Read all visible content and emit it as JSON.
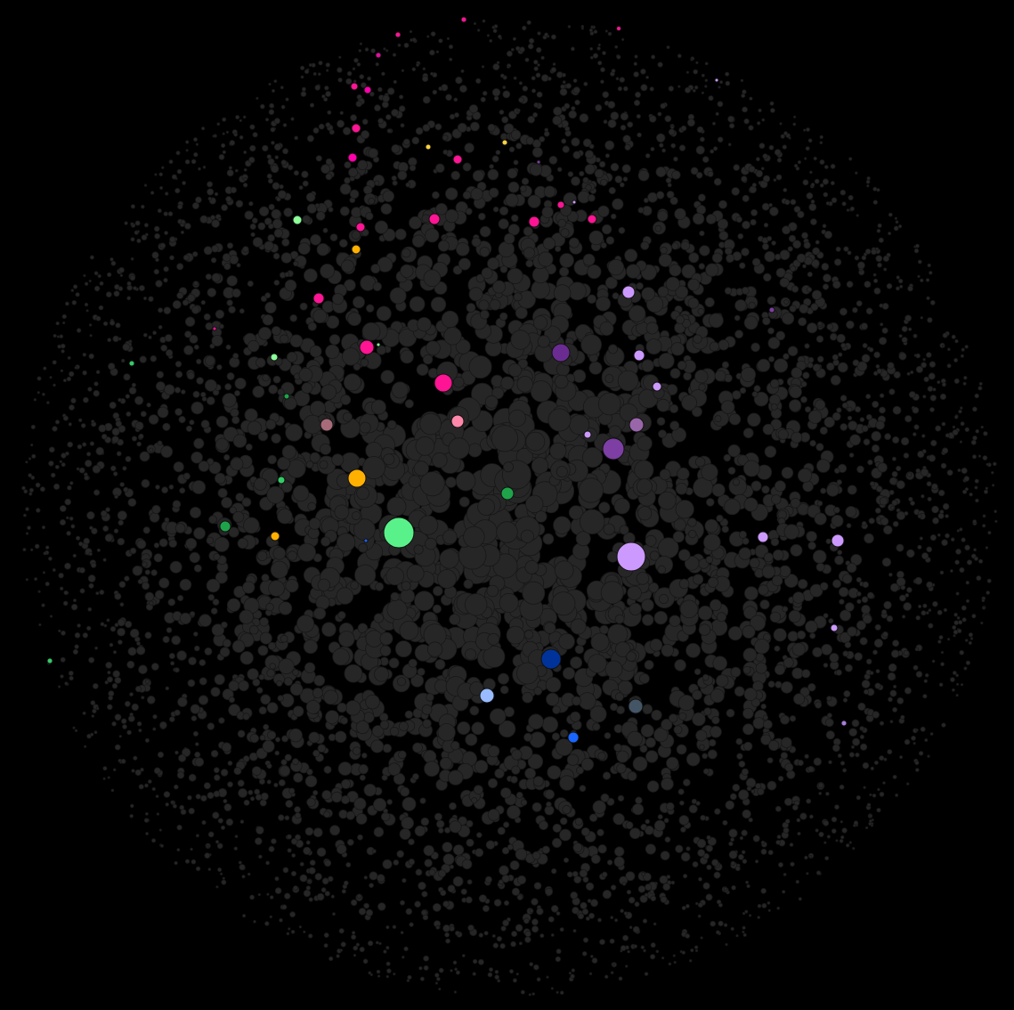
{
  "colors": {
    "background": "#000000",
    "default_fill": "#262626",
    "default_stroke": "#171717"
  },
  "highlighted_node_colors": [
    "#ff1493",
    "#ff00aa",
    "#e0119d",
    "#ff33cc",
    "#ffd23f",
    "#ffb000",
    "#59f28a",
    "#33cc66",
    "#1fa34a",
    "#8cff99",
    "#cc99ff",
    "#a97ee0",
    "#7d3fa3",
    "#6a2c91",
    "#9966aa",
    "#003399",
    "#1a66ff",
    "#99bbff",
    "#445566",
    "#ff88aa",
    "#a86b7a"
  ]
}
